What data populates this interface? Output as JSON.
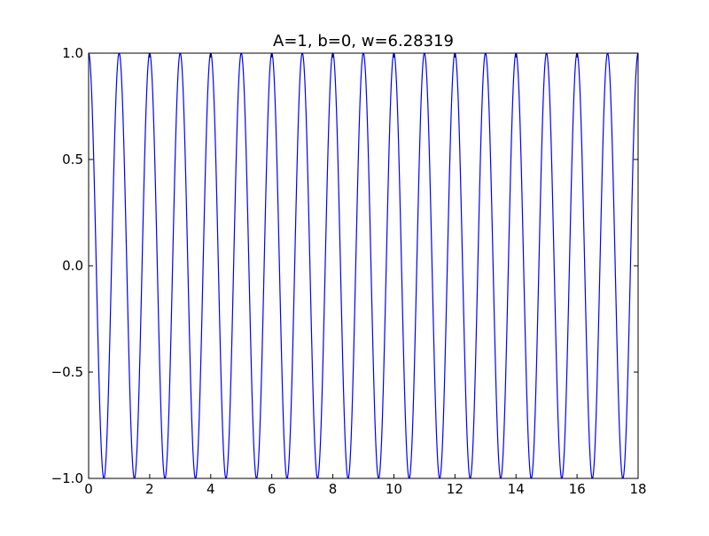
{
  "chart_data": {
    "type": "line",
    "title": "A=1, b=0, w=6.28319",
    "xlabel": "",
    "ylabel": "",
    "xlim": [
      0,
      18
    ],
    "ylim": [
      -1.0,
      1.0
    ],
    "grid": false,
    "legend": "none",
    "x_ticks": [
      {
        "value": 0,
        "label": "0"
      },
      {
        "value": 2,
        "label": "2"
      },
      {
        "value": 4,
        "label": "4"
      },
      {
        "value": 6,
        "label": "6"
      },
      {
        "value": 8,
        "label": "8"
      },
      {
        "value": 10,
        "label": "10"
      },
      {
        "value": 12,
        "label": "12"
      },
      {
        "value": 14,
        "label": "14"
      },
      {
        "value": 16,
        "label": "16"
      },
      {
        "value": 18,
        "label": "18"
      }
    ],
    "y_ticks": [
      {
        "value": -1.0,
        "label": "−1.0"
      },
      {
        "value": -0.5,
        "label": "−0.5"
      },
      {
        "value": 0.0,
        "label": "0.0"
      },
      {
        "value": 0.5,
        "label": "0.5"
      },
      {
        "value": 1.0,
        "label": "1.0"
      }
    ],
    "series": [
      {
        "function": "A*cos(w*x + b)",
        "A": 1,
        "b": 0,
        "w": 6.28319,
        "x_range": [
          0,
          18
        ],
        "color": "#0000ff"
      }
    ]
  }
}
